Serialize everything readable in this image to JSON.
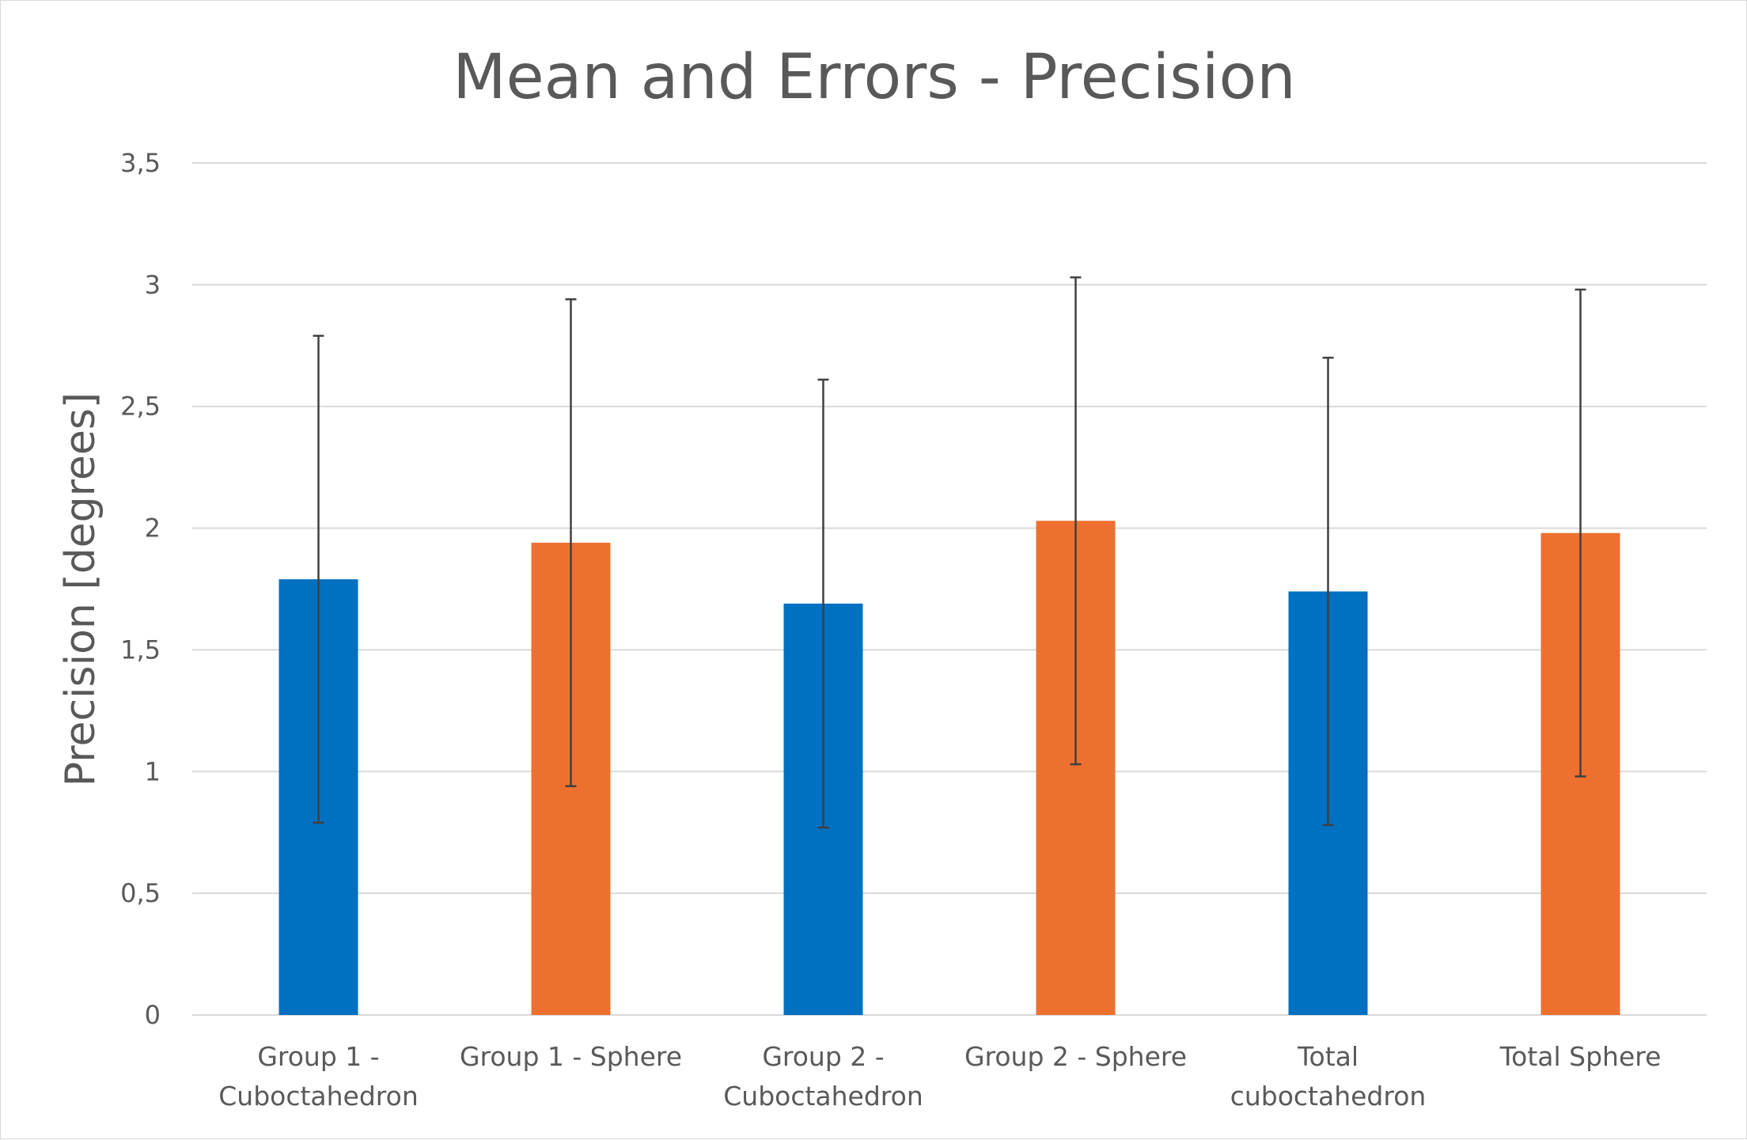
{
  "chart_data": {
    "type": "bar",
    "title": "Mean and Errors - Precision",
    "xlabel": "",
    "ylabel": "Precision [degrees]",
    "ylim": [
      0,
      3.5
    ],
    "yticks": [
      "0",
      "0,5",
      "1",
      "1,5",
      "2",
      "2,5",
      "3",
      "3,5"
    ],
    "grid": true,
    "legend": "none",
    "categories": [
      [
        "Group 1 -",
        "Cuboctahedron"
      ],
      [
        "Group 1 - Sphere"
      ],
      [
        "Group 2 -",
        "Cuboctahedron"
      ],
      [
        "Group 2 - Sphere"
      ],
      [
        "Total",
        "cuboctahedron"
      ],
      [
        "Total Sphere"
      ]
    ],
    "values": [
      1.79,
      1.94,
      1.69,
      2.03,
      1.74,
      1.98
    ],
    "errors": [
      1.0,
      1.0,
      0.92,
      1.0,
      0.96,
      1.0
    ],
    "bar_colors": [
      "#0070c0",
      "#ed7031",
      "#0070c0",
      "#ed7031",
      "#0070c0",
      "#ed7031"
    ],
    "error_bar_color": "#404040",
    "gridline_color": "#d9d9d9"
  }
}
